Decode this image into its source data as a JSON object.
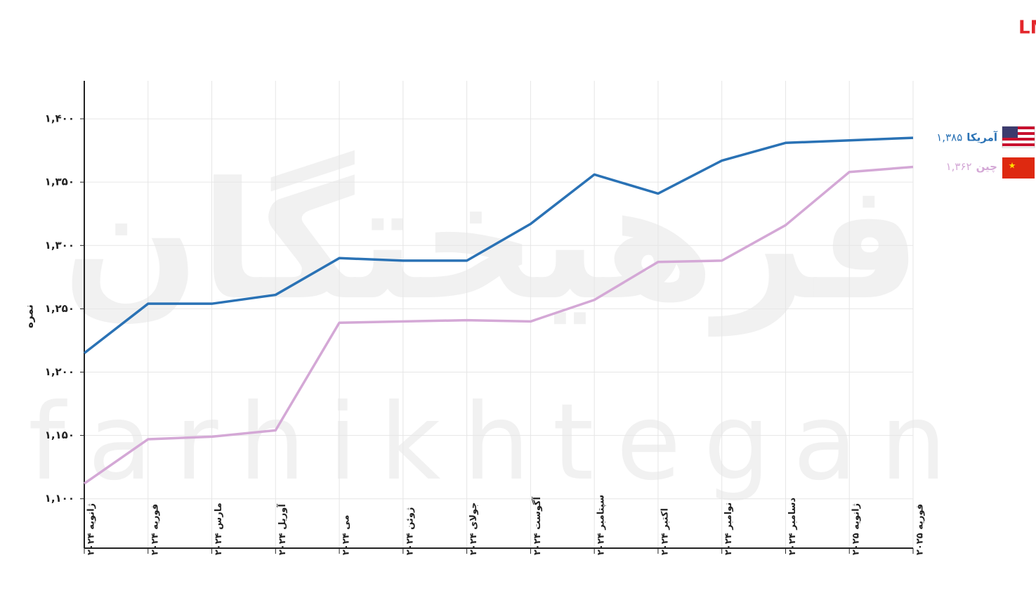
{
  "chart_data": {
    "type": "line",
    "title": "عملکرد برترین مدل‌های آمریکایی در برابر مدل‌های چینی براساس عرصه‌های چت بات LMSYS",
    "ylabel": "نمره",
    "watermark": [
      "فرهیختگان",
      "farhikhtegan"
    ],
    "categories": [
      "ژانویه ۲۰۲۴",
      "فوریه ۲۰۲۴",
      "مارس ۲۰۲۴",
      "آوریل ۲۰۲۴",
      "می ۲۰۲۴",
      "ژوئن ۲۰۲۴",
      "جولای ۲۰۲۴",
      "آگوست ۲۰۲۴",
      "سپتامبر ۲۰۲۴",
      "اکتبر ۲۰۲۴",
      "نوامبر ۲۰۲۴",
      "دسامبر ۲۰۲۴",
      "ژانویه ۲۰۲۵",
      "فوریه ۲۰۲۵"
    ],
    "series": [
      {
        "name": "آمریکا",
        "color": "#2a72b5",
        "values": [
          1215,
          1254,
          1254,
          1261,
          1290,
          1288,
          1288,
          1317,
          1356,
          1341,
          1367,
          1381,
          1383,
          1385
        ],
        "value_labels": [
          null,
          null,
          null,
          null,
          null,
          null,
          null,
          null,
          null,
          null,
          null,
          null,
          null,
          "۱,۳۸۵"
        ]
      },
      {
        "name": "چین",
        "color": "#d4a8d6",
        "values": [
          1112,
          1147,
          1149,
          1154,
          1239,
          1240,
          1241,
          1240,
          1257,
          1287,
          1288,
          1316,
          1358,
          1362
        ],
        "value_labels": [
          null,
          null,
          null,
          null,
          null,
          null,
          null,
          null,
          null,
          null,
          null,
          null,
          null,
          "۱,۳۶۲"
        ]
      }
    ],
    "ylim": [
      1061,
      1430
    ],
    "yticks": [
      {
        "value": 1100,
        "label": "۱,۱۰۰"
      },
      {
        "value": 1150,
        "label": "۱,۱۵۰"
      },
      {
        "value": 1200,
        "label": "۱,۲۰۰"
      },
      {
        "value": 1250,
        "label": "۱,۲۵۰"
      },
      {
        "value": 1300,
        "label": "۱,۳۰۰"
      },
      {
        "value": 1350,
        "label": "۱,۳۵۰"
      },
      {
        "value": 1400,
        "label": "۱,۴۰۰"
      }
    ],
    "grid": true
  }
}
